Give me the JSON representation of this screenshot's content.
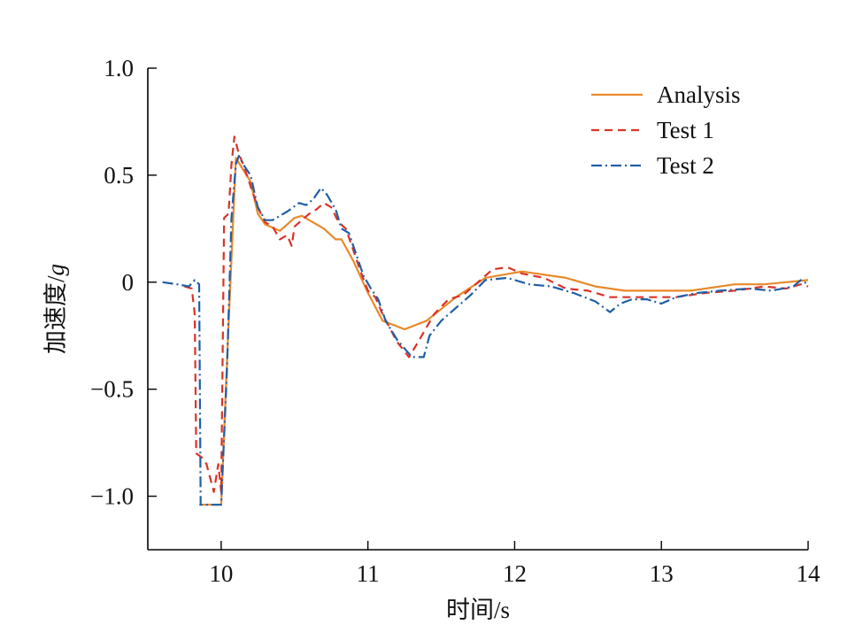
{
  "chart_data": {
    "type": "line",
    "xlabel": "时间/s",
    "ylabel_main": "加速度/",
    "ylabel_unit": "g",
    "xlim": [
      9.5,
      14
    ],
    "ylim": [
      -1.25,
      1.0
    ],
    "xticks": [
      10,
      11,
      12,
      13,
      14
    ],
    "yticks": [
      1.0,
      0.5,
      0,
      -0.5,
      -1.0
    ],
    "ytick_labels": [
      "1.0",
      "0.5",
      "0",
      "−0.5",
      "−1.0"
    ],
    "legend_position": "top-right",
    "series": [
      {
        "name": "Analysis",
        "color": "#e8892a",
        "dash": "solid",
        "points": [
          [
            9.85,
            -1.04
          ],
          [
            10.0,
            -1.04
          ],
          [
            10.05,
            -0.2
          ],
          [
            10.1,
            0.58
          ],
          [
            10.2,
            0.47
          ],
          [
            10.25,
            0.32
          ],
          [
            10.3,
            0.27
          ],
          [
            10.4,
            0.24
          ],
          [
            10.5,
            0.3
          ],
          [
            10.55,
            0.31
          ],
          [
            10.6,
            0.29
          ],
          [
            10.7,
            0.25
          ],
          [
            10.78,
            0.2
          ],
          [
            10.82,
            0.2
          ],
          [
            10.9,
            0.1
          ],
          [
            11.0,
            -0.05
          ],
          [
            11.1,
            -0.18
          ],
          [
            11.25,
            -0.22
          ],
          [
            11.4,
            -0.18
          ],
          [
            11.6,
            -0.07
          ],
          [
            11.8,
            0.02
          ],
          [
            12.05,
            0.05
          ],
          [
            12.35,
            0.02
          ],
          [
            12.55,
            -0.02
          ],
          [
            12.75,
            -0.04
          ],
          [
            13.0,
            -0.04
          ],
          [
            13.2,
            -0.04
          ],
          [
            13.5,
            -0.01
          ],
          [
            13.7,
            -0.01
          ],
          [
            13.85,
            0.0
          ],
          [
            14.0,
            0.01
          ]
        ]
      },
      {
        "name": "Test 1",
        "color": "#d93328",
        "dash": "9,6",
        "points": [
          [
            9.75,
            -0.02
          ],
          [
            9.8,
            -0.03
          ],
          [
            9.82,
            -0.15
          ],
          [
            9.83,
            -0.8
          ],
          [
            9.87,
            -0.82
          ],
          [
            9.9,
            -0.85
          ],
          [
            9.95,
            -0.98
          ],
          [
            9.98,
            -0.85
          ],
          [
            10.0,
            -0.98
          ],
          [
            10.02,
            0.3
          ],
          [
            10.05,
            0.32
          ],
          [
            10.07,
            0.55
          ],
          [
            10.09,
            0.68
          ],
          [
            10.12,
            0.6
          ],
          [
            10.15,
            0.55
          ],
          [
            10.2,
            0.45
          ],
          [
            10.25,
            0.35
          ],
          [
            10.3,
            0.28
          ],
          [
            10.35,
            0.26
          ],
          [
            10.4,
            0.2
          ],
          [
            10.45,
            0.22
          ],
          [
            10.48,
            0.17
          ],
          [
            10.5,
            0.26
          ],
          [
            10.55,
            0.29
          ],
          [
            10.6,
            0.32
          ],
          [
            10.65,
            0.34
          ],
          [
            10.7,
            0.37
          ],
          [
            10.75,
            0.35
          ],
          [
            10.8,
            0.28
          ],
          [
            10.85,
            0.25
          ],
          [
            10.9,
            0.15
          ],
          [
            10.95,
            0.05
          ],
          [
            11.0,
            -0.04
          ],
          [
            11.05,
            -0.07
          ],
          [
            11.1,
            -0.15
          ],
          [
            11.2,
            -0.28
          ],
          [
            11.28,
            -0.35
          ],
          [
            11.35,
            -0.27
          ],
          [
            11.45,
            -0.15
          ],
          [
            11.55,
            -0.08
          ],
          [
            11.65,
            -0.06
          ],
          [
            11.75,
            0.0
          ],
          [
            11.85,
            0.06
          ],
          [
            11.95,
            0.07
          ],
          [
            12.05,
            0.04
          ],
          [
            12.2,
            0.02
          ],
          [
            12.35,
            -0.03
          ],
          [
            12.5,
            -0.04
          ],
          [
            12.65,
            -0.07
          ],
          [
            12.8,
            -0.07
          ],
          [
            12.95,
            -0.07
          ],
          [
            13.1,
            -0.07
          ],
          [
            13.3,
            -0.05
          ],
          [
            13.5,
            -0.04
          ],
          [
            13.7,
            -0.02
          ],
          [
            13.85,
            -0.03
          ],
          [
            13.95,
            -0.01
          ],
          [
            14.0,
            -0.02
          ]
        ]
      },
      {
        "name": "Test 2",
        "color": "#1f5fa5",
        "dash": "12,4,2,4",
        "points": [
          [
            9.6,
            0.0
          ],
          [
            9.7,
            -0.01
          ],
          [
            9.78,
            -0.02
          ],
          [
            9.82,
            0.01
          ],
          [
            9.85,
            -0.01
          ],
          [
            9.86,
            -1.04
          ],
          [
            9.9,
            -1.04
          ],
          [
            10.0,
            -1.04
          ],
          [
            10.04,
            -0.4
          ],
          [
            10.07,
            0.3
          ],
          [
            10.1,
            0.55
          ],
          [
            10.12,
            0.59
          ],
          [
            10.15,
            0.55
          ],
          [
            10.2,
            0.5
          ],
          [
            10.25,
            0.35
          ],
          [
            10.3,
            0.29
          ],
          [
            10.35,
            0.29
          ],
          [
            10.45,
            0.33
          ],
          [
            10.53,
            0.37
          ],
          [
            10.58,
            0.36
          ],
          [
            10.63,
            0.39
          ],
          [
            10.68,
            0.44
          ],
          [
            10.72,
            0.41
          ],
          [
            10.78,
            0.34
          ],
          [
            10.82,
            0.25
          ],
          [
            10.87,
            0.23
          ],
          [
            10.92,
            0.13
          ],
          [
            10.97,
            0.03
          ],
          [
            11.02,
            -0.03
          ],
          [
            11.07,
            -0.08
          ],
          [
            11.12,
            -0.18
          ],
          [
            11.2,
            -0.27
          ],
          [
            11.3,
            -0.35
          ],
          [
            11.38,
            -0.35
          ],
          [
            11.42,
            -0.25
          ],
          [
            11.5,
            -0.18
          ],
          [
            11.6,
            -0.12
          ],
          [
            11.7,
            -0.06
          ],
          [
            11.8,
            0.01
          ],
          [
            11.95,
            0.02
          ],
          [
            12.1,
            -0.01
          ],
          [
            12.25,
            -0.02
          ],
          [
            12.4,
            -0.05
          ],
          [
            12.55,
            -0.09
          ],
          [
            12.65,
            -0.14
          ],
          [
            12.72,
            -0.1
          ],
          [
            12.8,
            -0.08
          ],
          [
            12.9,
            -0.08
          ],
          [
            13.0,
            -0.1
          ],
          [
            13.1,
            -0.07
          ],
          [
            13.25,
            -0.05
          ],
          [
            13.4,
            -0.04
          ],
          [
            13.6,
            -0.03
          ],
          [
            13.75,
            -0.04
          ],
          [
            13.9,
            -0.02
          ],
          [
            13.95,
            0.01
          ],
          [
            14.0,
            -0.01
          ]
        ]
      }
    ]
  }
}
